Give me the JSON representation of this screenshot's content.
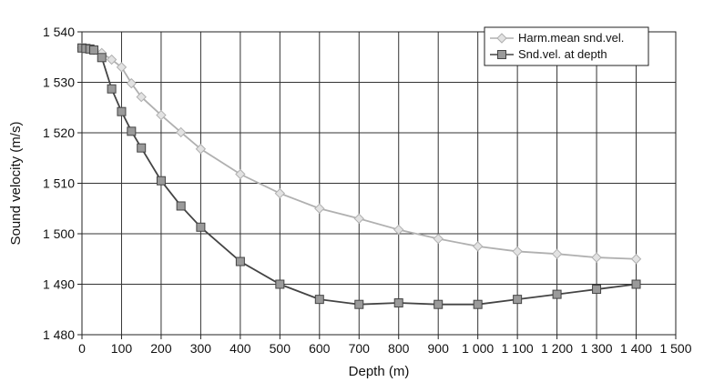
{
  "chart_data": {
    "type": "line",
    "xlabel": "Depth (m)",
    "ylabel": "Sound velocity (m/s)",
    "xlim": [
      0,
      1500
    ],
    "ylim": [
      1480,
      1540
    ],
    "x_ticks": [
      0,
      100,
      200,
      300,
      400,
      500,
      600,
      700,
      800,
      900,
      1000,
      1100,
      1200,
      1300,
      1400,
      1500
    ],
    "x_tick_labels": [
      "0",
      "100",
      "200",
      "300",
      "400",
      "500",
      "600",
      "700",
      "800",
      "900",
      "1 000",
      "1 100",
      "1 200",
      "1 300",
      "1 400",
      "1 500"
    ],
    "y_ticks": [
      1480,
      1490,
      1500,
      1510,
      1520,
      1530,
      1540
    ],
    "y_tick_labels": [
      "1 480",
      "1 490",
      "1 500",
      "1 510",
      "1 520",
      "1 530",
      "1 540"
    ],
    "grid": true,
    "legend_position": "top-right",
    "series": [
      {
        "name": "Harm.mean snd.vel.",
        "color": "#b0b0b0",
        "marker": "diamond",
        "x": [
          0,
          10,
          20,
          30,
          50,
          75,
          100,
          125,
          150,
          200,
          250,
          300,
          400,
          500,
          600,
          700,
          800,
          900,
          1000,
          1100,
          1200,
          1300,
          1400
        ],
        "y": [
          1536.8,
          1536.7,
          1536.6,
          1536.4,
          1535.8,
          1534.5,
          1533.0,
          1529.8,
          1527.1,
          1523.5,
          1520.1,
          1516.8,
          1511.8,
          1508.0,
          1505.0,
          1503.0,
          1500.8,
          1499.0,
          1497.5,
          1496.5,
          1496.0,
          1495.3,
          1495.0
        ]
      },
      {
        "name": "Snd.vel. at depth",
        "color": "#444444",
        "marker": "square",
        "x": [
          0,
          10,
          20,
          30,
          50,
          75,
          100,
          125,
          150,
          200,
          250,
          300,
          400,
          500,
          600,
          700,
          800,
          900,
          1000,
          1100,
          1200,
          1300,
          1400
        ],
        "y": [
          1536.8,
          1536.7,
          1536.6,
          1536.4,
          1534.9,
          1528.7,
          1524.2,
          1520.3,
          1517.0,
          1510.5,
          1505.5,
          1501.3,
          1494.5,
          1490.0,
          1487.0,
          1486.0,
          1486.3,
          1486.0,
          1486.0,
          1487.0,
          1488.0,
          1489.0,
          1490.0
        ]
      }
    ]
  }
}
